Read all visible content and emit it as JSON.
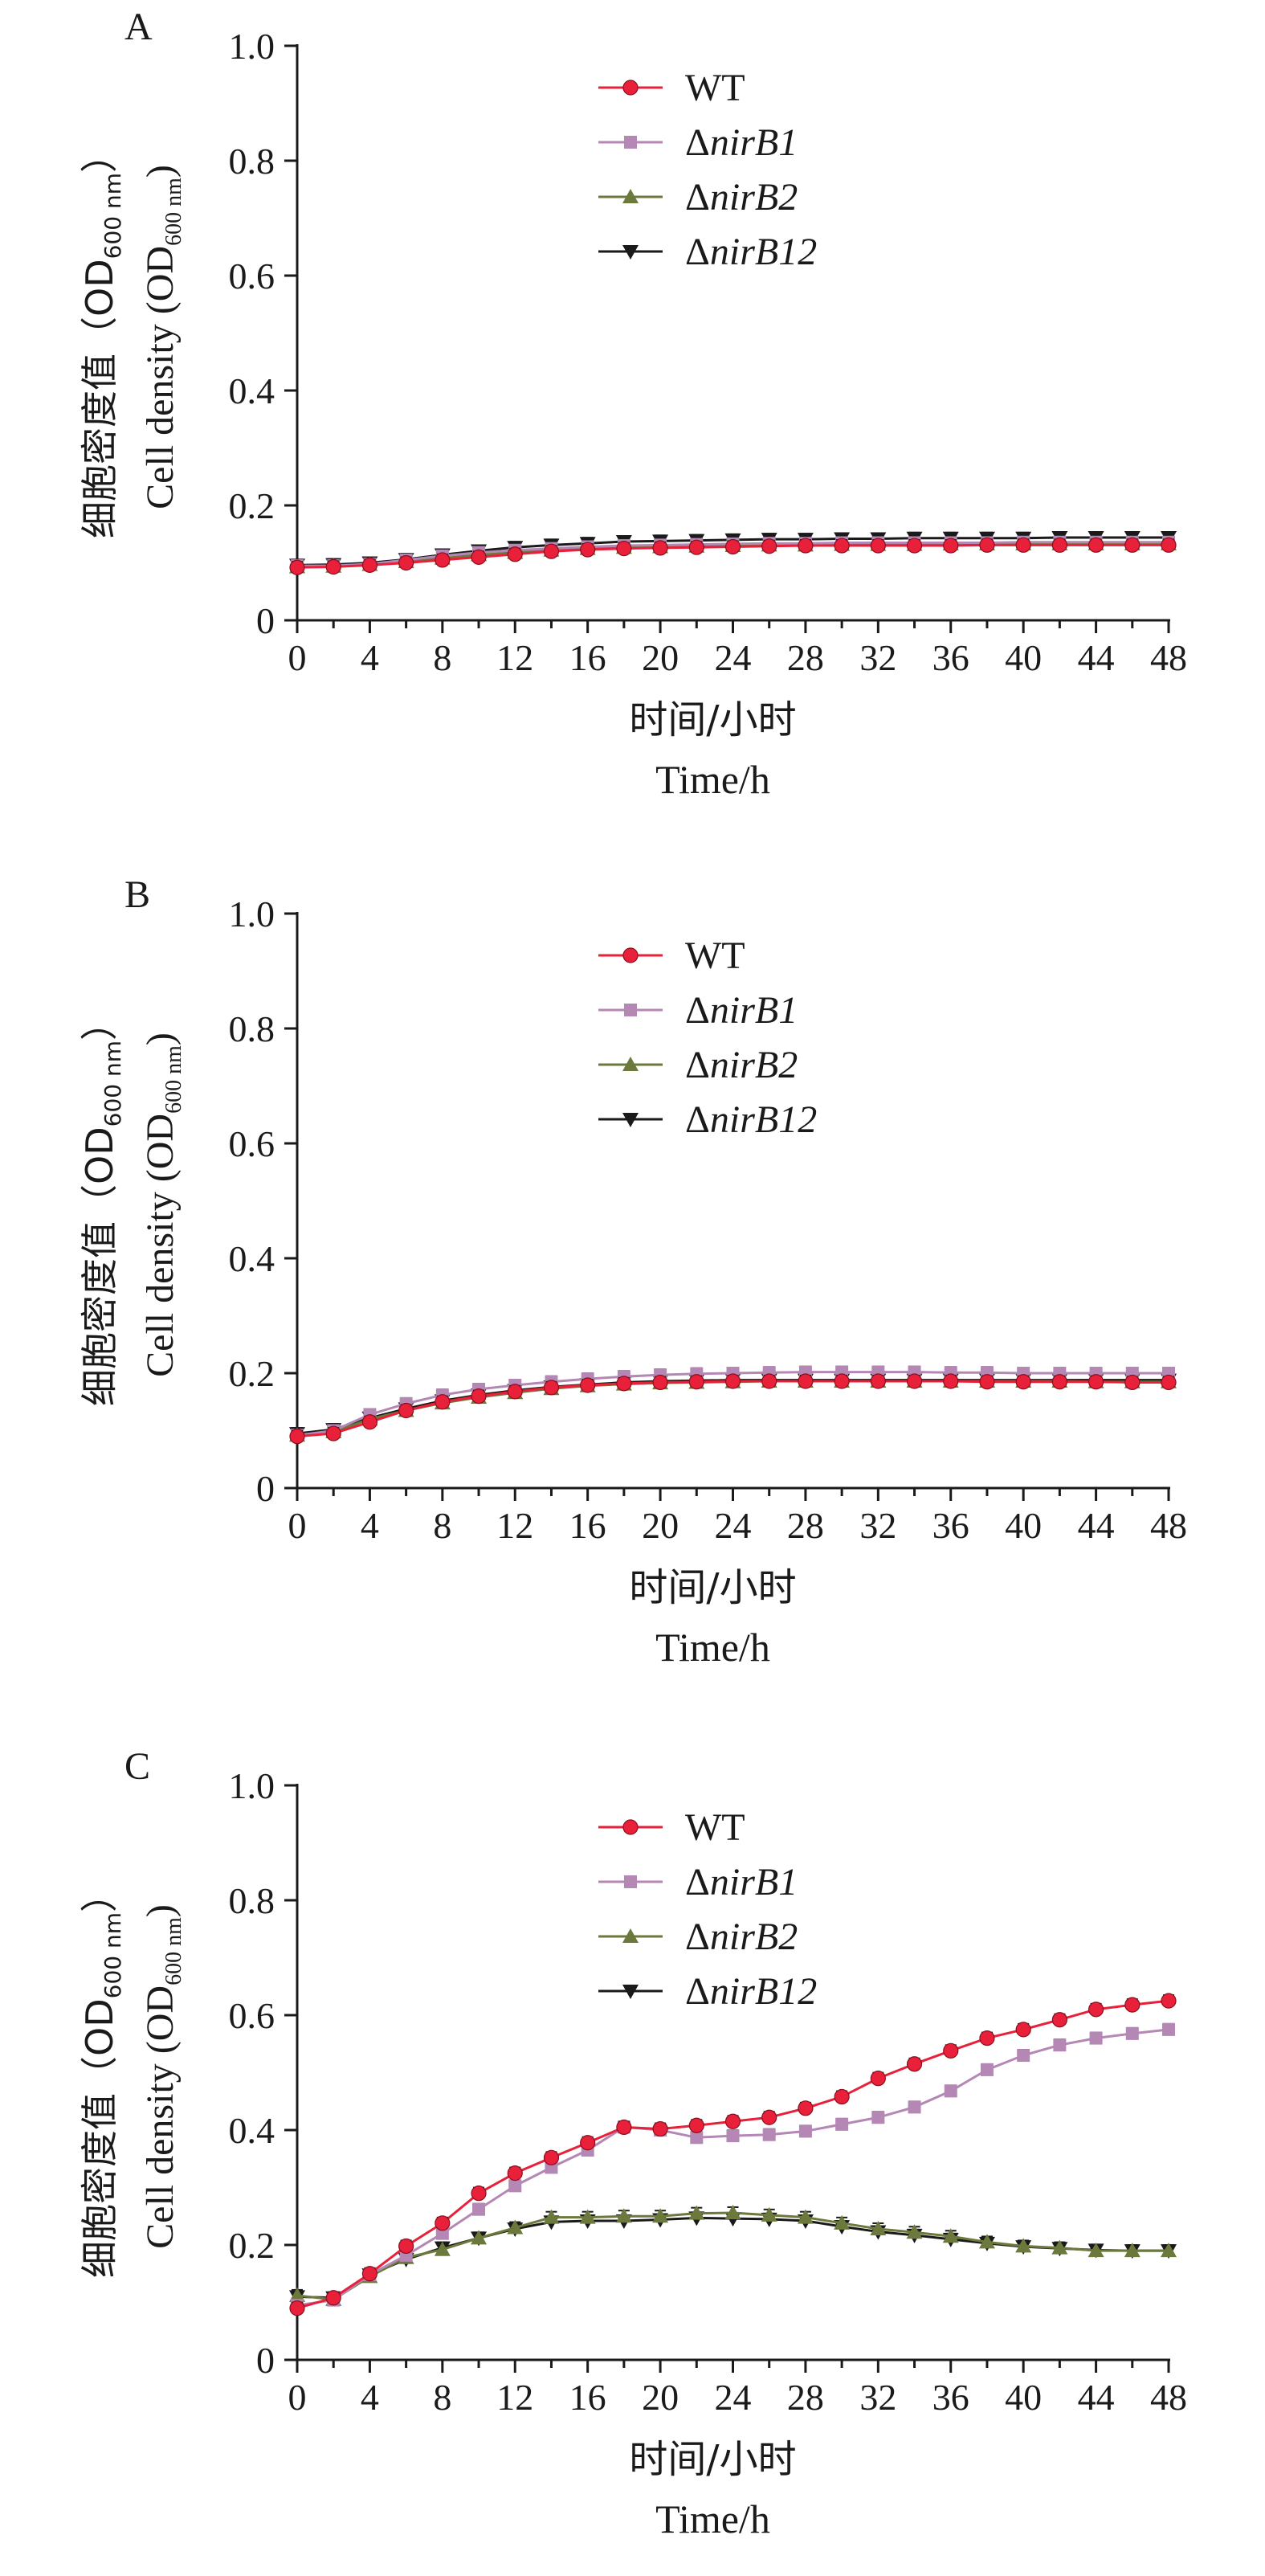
{
  "colors": {
    "WT": "#e8203a",
    "nirB1": "#b487b4",
    "nirB2": "#6b7a3c",
    "nirB12": "#1a1a1a",
    "errorbar": "#1a1a1a"
  },
  "chart_data": [
    {
      "type": "line",
      "panel": "A",
      "xlabel_cn": "时间/小时",
      "xlabel_en": "Time/h",
      "ylabel_cn": "细胞密度值（OD",
      "ylabel_cn_sub": "600 nm",
      "ylabel_cn_close": "）",
      "ylabel_en": "Cell density (OD",
      "ylabel_en_sub": "600 nm",
      "ylabel_en_close": ")",
      "xlim": [
        0,
        48
      ],
      "ylim": [
        0,
        1.0
      ],
      "xticks": [
        "0",
        "4",
        "8",
        "12",
        "16",
        "20",
        "24",
        "28",
        "32",
        "36",
        "40",
        "44",
        "48"
      ],
      "yticks": [
        "0",
        "0.2",
        "0.4",
        "0.6",
        "0.8",
        "1.0"
      ],
      "legend_position": "top-center",
      "x": [
        0,
        2,
        4,
        6,
        8,
        10,
        12,
        14,
        16,
        18,
        20,
        22,
        24,
        26,
        28,
        30,
        32,
        34,
        36,
        38,
        40,
        42,
        44,
        46,
        48
      ],
      "series": [
        {
          "name": "WT",
          "prefix": "",
          "label": "WT",
          "marker": "circle",
          "values": [
            0.092,
            0.093,
            0.096,
            0.1,
            0.105,
            0.11,
            0.115,
            0.12,
            0.123,
            0.125,
            0.126,
            0.127,
            0.128,
            0.129,
            0.13,
            0.13,
            0.13,
            0.13,
            0.13,
            0.131,
            0.131,
            0.131,
            0.131,
            0.131,
            0.131
          ]
        },
        {
          "name": "nirB1",
          "prefix": "Δ",
          "label": "nirB1",
          "marker": "square",
          "values": [
            0.095,
            0.095,
            0.098,
            0.105,
            0.112,
            0.118,
            0.122,
            0.125,
            0.128,
            0.13,
            0.131,
            0.132,
            0.133,
            0.134,
            0.134,
            0.135,
            0.135,
            0.135,
            0.135,
            0.135,
            0.136,
            0.136,
            0.136,
            0.136,
            0.136
          ]
        },
        {
          "name": "nirB2",
          "prefix": "Δ",
          "label": "nirB2",
          "marker": "triangle-up",
          "values": [
            0.093,
            0.094,
            0.097,
            0.102,
            0.108,
            0.114,
            0.118,
            0.122,
            0.125,
            0.127,
            0.128,
            0.129,
            0.13,
            0.131,
            0.131,
            0.132,
            0.132,
            0.132,
            0.133,
            0.133,
            0.133,
            0.133,
            0.133,
            0.133,
            0.133
          ]
        },
        {
          "name": "nirB12",
          "prefix": "Δ",
          "label": "nirB12",
          "marker": "triangle-down",
          "values": [
            0.096,
            0.097,
            0.1,
            0.106,
            0.114,
            0.121,
            0.127,
            0.131,
            0.134,
            0.137,
            0.138,
            0.139,
            0.14,
            0.141,
            0.141,
            0.142,
            0.142,
            0.143,
            0.143,
            0.143,
            0.143,
            0.144,
            0.144,
            0.144,
            0.144
          ]
        }
      ]
    },
    {
      "type": "line",
      "panel": "B",
      "xlabel_cn": "时间/小时",
      "xlabel_en": "Time/h",
      "ylabel_cn": "细胞密度值（OD",
      "ylabel_cn_sub": "600 nm",
      "ylabel_cn_close": "）",
      "ylabel_en": "Cell density (OD",
      "ylabel_en_sub": "600 nm",
      "ylabel_en_close": ")",
      "xlim": [
        0,
        48
      ],
      "ylim": [
        0,
        1.0
      ],
      "xticks": [
        "0",
        "4",
        "8",
        "12",
        "16",
        "20",
        "24",
        "28",
        "32",
        "36",
        "40",
        "44",
        "48"
      ],
      "yticks": [
        "0",
        "0.2",
        "0.4",
        "0.6",
        "0.8",
        "1.0"
      ],
      "legend_position": "top-center",
      "x": [
        0,
        2,
        4,
        6,
        8,
        10,
        12,
        14,
        16,
        18,
        20,
        22,
        24,
        26,
        28,
        30,
        32,
        34,
        36,
        38,
        40,
        42,
        44,
        46,
        48
      ],
      "series": [
        {
          "name": "WT",
          "prefix": "",
          "label": "WT",
          "marker": "circle",
          "values": [
            0.09,
            0.095,
            0.115,
            0.135,
            0.15,
            0.16,
            0.168,
            0.175,
            0.179,
            0.182,
            0.184,
            0.185,
            0.186,
            0.186,
            0.186,
            0.186,
            0.186,
            0.186,
            0.186,
            0.185,
            0.185,
            0.185,
            0.185,
            0.184,
            0.184
          ]
        },
        {
          "name": "nirB1",
          "prefix": "Δ",
          "label": "nirB1",
          "marker": "square",
          "values": [
            0.092,
            0.1,
            0.128,
            0.147,
            0.162,
            0.172,
            0.179,
            0.185,
            0.19,
            0.194,
            0.197,
            0.199,
            0.2,
            0.201,
            0.202,
            0.202,
            0.202,
            0.202,
            0.201,
            0.201,
            0.2,
            0.2,
            0.2,
            0.2,
            0.2
          ]
        },
        {
          "name": "nirB2",
          "prefix": "Δ",
          "label": "nirB2",
          "marker": "triangle-up",
          "values": [
            0.092,
            0.098,
            0.12,
            0.135,
            0.148,
            0.158,
            0.166,
            0.173,
            0.178,
            0.181,
            0.183,
            0.184,
            0.185,
            0.186,
            0.186,
            0.186,
            0.186,
            0.186,
            0.186,
            0.186,
            0.186,
            0.186,
            0.185,
            0.185,
            0.185
          ]
        },
        {
          "name": "nirB12",
          "prefix": "Δ",
          "label": "nirB12",
          "marker": "triangle-down",
          "values": [
            0.095,
            0.102,
            0.122,
            0.138,
            0.152,
            0.162,
            0.17,
            0.176,
            0.18,
            0.184,
            0.186,
            0.187,
            0.188,
            0.188,
            0.188,
            0.188,
            0.188,
            0.188,
            0.188,
            0.188,
            0.188,
            0.188,
            0.188,
            0.188,
            0.188
          ]
        }
      ]
    },
    {
      "type": "line",
      "panel": "C",
      "xlabel_cn": "时间/小时",
      "xlabel_en": "Time/h",
      "ylabel_cn": "细胞密度值（OD",
      "ylabel_cn_sub": "600 nm",
      "ylabel_cn_close": "）",
      "ylabel_en": "Cell density (OD",
      "ylabel_en_sub": "600 nm",
      "ylabel_en_close": ")",
      "xlim": [
        0,
        48
      ],
      "ylim": [
        0,
        1.0
      ],
      "xticks": [
        "0",
        "4",
        "8",
        "12",
        "16",
        "20",
        "24",
        "28",
        "32",
        "36",
        "40",
        "44",
        "48"
      ],
      "yticks": [
        "0",
        "0.2",
        "0.4",
        "0.6",
        "0.8",
        "1.0"
      ],
      "legend_position": "top-center",
      "x": [
        0,
        2,
        4,
        6,
        8,
        10,
        12,
        14,
        16,
        18,
        20,
        22,
        24,
        26,
        28,
        30,
        32,
        34,
        36,
        38,
        40,
        42,
        44,
        46,
        48
      ],
      "series": [
        {
          "name": "WT",
          "prefix": "",
          "label": "WT",
          "marker": "circle",
          "values": [
            0.09,
            0.108,
            0.15,
            0.198,
            0.238,
            0.29,
            0.325,
            0.352,
            0.378,
            0.405,
            0.402,
            0.408,
            0.415,
            0.422,
            0.438,
            0.458,
            0.49,
            0.515,
            0.538,
            0.56,
            0.575,
            0.592,
            0.61,
            0.618,
            0.625
          ]
        },
        {
          "name": "nirB1",
          "prefix": "Δ",
          "label": "nirB1",
          "marker": "square",
          "values": [
            0.095,
            0.104,
            0.148,
            0.182,
            0.22,
            0.262,
            0.303,
            0.335,
            0.365,
            0.405,
            0.4,
            0.387,
            0.39,
            0.392,
            0.398,
            0.41,
            0.422,
            0.44,
            0.468,
            0.505,
            0.53,
            0.548,
            0.56,
            0.568,
            0.575
          ]
        },
        {
          "name": "nirB2",
          "prefix": "Δ",
          "label": "nirB2",
          "marker": "triangle-up",
          "values": [
            0.112,
            0.105,
            0.145,
            0.178,
            0.192,
            0.212,
            0.23,
            0.248,
            0.248,
            0.25,
            0.25,
            0.255,
            0.256,
            0.252,
            0.248,
            0.238,
            0.228,
            0.222,
            0.215,
            0.205,
            0.198,
            0.195,
            0.19,
            0.19,
            0.19
          ]
        },
        {
          "name": "nirB12",
          "prefix": "Δ",
          "label": "nirB12",
          "marker": "triangle-down",
          "values": [
            0.11,
            0.108,
            0.148,
            0.175,
            0.195,
            0.212,
            0.228,
            0.24,
            0.242,
            0.242,
            0.244,
            0.247,
            0.246,
            0.245,
            0.242,
            0.232,
            0.223,
            0.217,
            0.21,
            0.203,
            0.197,
            0.194,
            0.191,
            0.19,
            0.19
          ]
        }
      ]
    }
  ]
}
